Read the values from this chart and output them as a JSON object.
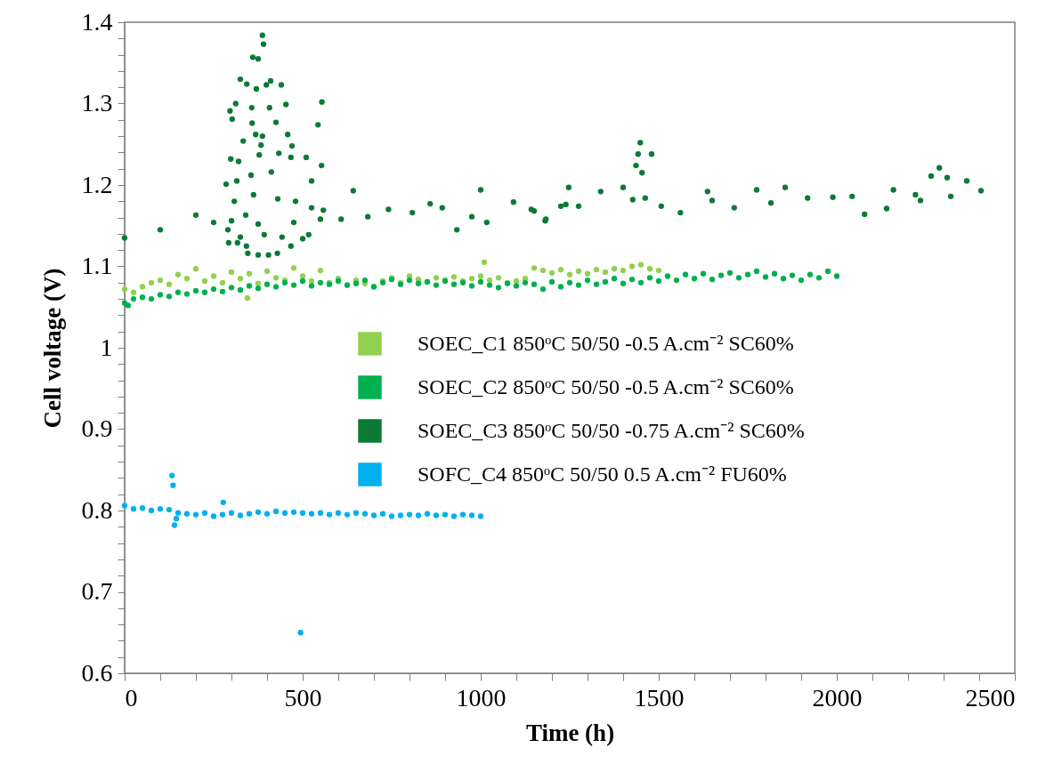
{
  "chart_data": {
    "type": "scatter",
    "xlabel": "Time (h)",
    "ylabel": "Cell voltage (V)",
    "marker": "circle",
    "legend": "right",
    "grid": false,
    "xlim": [
      0,
      2500
    ],
    "ylim": [
      0.6,
      1.4
    ],
    "xticks": [
      0,
      {
        "value": 100,
        "label": null
      },
      {
        "value": 200,
        "label": null
      },
      {
        "value": 300,
        "label": null
      },
      {
        "value": 400,
        "label": null
      },
      500,
      {
        "value": 600,
        "label": null
      },
      {
        "value": 700,
        "label": null
      },
      {
        "value": 800,
        "label": null
      },
      {
        "value": 900,
        "label": null
      },
      1000,
      {
        "value": 1100,
        "label": null
      },
      {
        "value": 1200,
        "label": null
      },
      {
        "value": 1300,
        "label": null
      },
      {
        "value": 1400,
        "label": null
      },
      1500,
      {
        "value": 1600,
        "label": null
      },
      {
        "value": 1700,
        "label": null
      },
      {
        "value": 1800,
        "label": null
      },
      {
        "value": 1900,
        "label": null
      },
      2000,
      {
        "value": 2100,
        "label": null
      },
      {
        "value": 2200,
        "label": null
      },
      {
        "value": 2300,
        "label": null
      },
      {
        "value": 2400,
        "label": null
      },
      2500
    ],
    "yticks": [
      0.6,
      {
        "value": 0.62,
        "label": null
      },
      {
        "value": 0.64,
        "label": null
      },
      {
        "value": 0.66,
        "label": null
      },
      {
        "value": 0.68,
        "label": null
      },
      0.7,
      {
        "value": 0.72,
        "label": null
      },
      {
        "value": 0.74,
        "label": null
      },
      {
        "value": 0.76,
        "label": null
      },
      {
        "value": 0.78,
        "label": null
      },
      0.8,
      {
        "value": 0.82,
        "label": null
      },
      {
        "value": 0.84,
        "label": null
      },
      {
        "value": 0.86,
        "label": null
      },
      {
        "value": 0.88,
        "label": null
      },
      0.9,
      {
        "value": 0.92,
        "label": null
      },
      {
        "value": 0.94,
        "label": null
      },
      {
        "value": 0.96,
        "label": null
      },
      {
        "value": 0.98,
        "label": null
      },
      1,
      {
        "value": 1.02,
        "label": null
      },
      {
        "value": 1.04,
        "label": null
      },
      {
        "value": 1.06,
        "label": null
      },
      {
        "value": 1.08,
        "label": null
      },
      1.1,
      {
        "value": 1.12,
        "label": null
      },
      {
        "value": 1.14,
        "label": null
      },
      {
        "value": 1.16,
        "label": null
      },
      {
        "value": 1.18,
        "label": null
      },
      1.2,
      {
        "value": 1.22,
        "label": null
      },
      {
        "value": 1.24,
        "label": null
      },
      {
        "value": 1.26,
        "label": null
      },
      {
        "value": 1.28,
        "label": null
      },
      1.3,
      {
        "value": 1.32,
        "label": null
      },
      {
        "value": 1.34,
        "label": null
      },
      {
        "value": 1.36,
        "label": null
      },
      {
        "value": 1.38,
        "label": null
      },
      1.4
    ],
    "series": [
      {
        "name": "SOEC_C1 850ᵒC 50/50 -0.5 A.cm⁻² SC60%",
        "color": "#92d050",
        "x": [
          0,
          25,
          50,
          75,
          100,
          125,
          150,
          175,
          200,
          225,
          250,
          275,
          300,
          325,
          345,
          350,
          375,
          400,
          425,
          450,
          475,
          500,
          525,
          550,
          575,
          600,
          625,
          650,
          675,
          700,
          725,
          750,
          775,
          800,
          825,
          850,
          875,
          900,
          925,
          950,
          975,
          1000,
          1010,
          1025,
          1050,
          1075,
          1100,
          1125,
          1150,
          1175,
          1200,
          1225,
          1250,
          1275,
          1300,
          1325,
          1350,
          1375,
          1400,
          1425,
          1450,
          1475,
          1500
        ],
        "values": [
          1.072,
          1.068,
          1.075,
          1.08,
          1.083,
          1.078,
          1.09,
          1.085,
          1.097,
          1.082,
          1.088,
          1.08,
          1.093,
          1.085,
          1.061,
          1.091,
          1.079,
          1.094,
          1.086,
          1.083,
          1.098,
          1.088,
          1.082,
          1.095,
          1.08,
          1.085,
          1.077,
          1.083,
          1.079,
          1.075,
          1.082,
          1.086,
          1.08,
          1.088,
          1.084,
          1.081,
          1.086,
          1.083,
          1.087,
          1.082,
          1.085,
          1.088,
          1.105,
          1.083,
          1.086,
          1.08,
          1.082,
          1.085,
          1.098,
          1.095,
          1.092,
          1.096,
          1.09,
          1.094,
          1.091,
          1.096,
          1.093,
          1.097,
          1.095,
          1.1,
          1.102,
          1.097,
          1.095
        ]
      },
      {
        "name": "SOEC_C2 850ᵒC 50/50 -0.5 A.cm⁻² SC60%",
        "color": "#00b050",
        "x": [
          0,
          10,
          25,
          50,
          75,
          100,
          125,
          150,
          175,
          200,
          225,
          250,
          275,
          300,
          325,
          350,
          375,
          400,
          425,
          450,
          475,
          500,
          525,
          550,
          575,
          600,
          625,
          650,
          675,
          700,
          725,
          750,
          775,
          800,
          825,
          850,
          875,
          900,
          925,
          950,
          975,
          1000,
          1025,
          1050,
          1075,
          1100,
          1125,
          1150,
          1175,
          1200,
          1225,
          1250,
          1275,
          1300,
          1325,
          1350,
          1375,
          1400,
          1425,
          1450,
          1475,
          1500,
          1525,
          1550,
          1575,
          1600,
          1625,
          1650,
          1675,
          1700,
          1725,
          1750,
          1775,
          1800,
          1825,
          1850,
          1875,
          1900,
          1925,
          1950,
          1975,
          2000
        ],
        "values": [
          1.055,
          1.052,
          1.06,
          1.062,
          1.06,
          1.065,
          1.063,
          1.068,
          1.066,
          1.07,
          1.068,
          1.072,
          1.069,
          1.074,
          1.071,
          1.076,
          1.073,
          1.078,
          1.075,
          1.08,
          1.077,
          1.082,
          1.076,
          1.08,
          1.078,
          1.082,
          1.077,
          1.079,
          1.083,
          1.075,
          1.08,
          1.084,
          1.078,
          1.083,
          1.079,
          1.081,
          1.077,
          1.082,
          1.078,
          1.08,
          1.076,
          1.081,
          1.077,
          1.074,
          1.079,
          1.076,
          1.08,
          1.078,
          1.072,
          1.081,
          1.075,
          1.08,
          1.077,
          1.083,
          1.078,
          1.081,
          1.085,
          1.079,
          1.084,
          1.08,
          1.086,
          1.082,
          1.088,
          1.083,
          1.09,
          1.085,
          1.091,
          1.084,
          1.089,
          1.092,
          1.086,
          1.09,
          1.094,
          1.087,
          1.091,
          1.085,
          1.089,
          1.083,
          1.09,
          1.086,
          1.094,
          1.088
        ]
      },
      {
        "name": "SOEC_C3 850ᵒC 50/50 -0.75 A.cm⁻² SC60%",
        "color": "#0b7a35",
        "x": [
          0,
          100,
          200,
          250,
          300,
          340,
          387,
          390,
          360,
          375,
          325,
          343,
          398,
          410,
          440,
          370,
          312,
          357,
          407,
          453,
          296,
          302,
          554,
          543,
          358,
          425,
          368,
          387,
          458,
          333,
          470,
          383,
          378,
          433,
          298,
          320,
          467,
          510,
          553,
          355,
          412,
          285,
          315,
          362,
          308,
          480,
          525,
          430,
          375,
          290,
          317,
          346,
          375,
          404,
          429,
          467,
          500,
          392,
          325,
          442,
          517,
          475,
          292,
          342,
          550,
          525,
          558,
          608,
          642,
          683,
          741,
          808,
          858,
          892,
          933,
          975,
          1000,
          1017,
          1092,
          1142,
          1150,
          1181,
          1183,
          1225,
          1239,
          1247,
          1275,
          1337,
          1400,
          1427,
          1436,
          1442,
          1448,
          1453,
          1462,
          1480,
          1507,
          1561,
          1637,
          1650,
          1712,
          1775,
          1815,
          1855,
          1918,
          1989,
          2043,
          2078,
          2140,
          2159,
          2221,
          2235,
          2265,
          2288,
          2310,
          2320,
          2365,
          2405
        ],
        "values": [
          1.135,
          1.145,
          1.163,
          1.154,
          1.156,
          1.163,
          1.384,
          1.373,
          1.357,
          1.355,
          1.33,
          1.324,
          1.323,
          1.328,
          1.323,
          1.318,
          1.3,
          1.295,
          1.295,
          1.299,
          1.291,
          1.281,
          1.302,
          1.274,
          1.276,
          1.277,
          1.262,
          1.26,
          1.262,
          1.254,
          1.248,
          1.249,
          1.237,
          1.239,
          1.232,
          1.229,
          1.234,
          1.234,
          1.224,
          1.212,
          1.216,
          1.201,
          1.205,
          1.188,
          1.18,
          1.18,
          1.205,
          1.183,
          1.152,
          1.145,
          1.129,
          1.116,
          1.114,
          1.114,
          1.116,
          1.125,
          1.134,
          1.139,
          1.136,
          1.136,
          1.139,
          1.154,
          1.129,
          1.125,
          1.158,
          1.172,
          1.169,
          1.158,
          1.193,
          1.161,
          1.17,
          1.166,
          1.177,
          1.172,
          1.145,
          1.161,
          1.194,
          1.154,
          1.179,
          1.17,
          1.168,
          1.156,
          1.158,
          1.174,
          1.176,
          1.197,
          1.174,
          1.192,
          1.197,
          1.182,
          1.224,
          1.238,
          1.252,
          1.215,
          1.184,
          1.238,
          1.174,
          1.166,
          1.192,
          1.181,
          1.172,
          1.194,
          1.178,
          1.197,
          1.184,
          1.185,
          1.186,
          1.164,
          1.171,
          1.194,
          1.188,
          1.181,
          1.211,
          1.221,
          1.209,
          1.186,
          1.205,
          1.193
        ]
      },
      {
        "name": "SOFC_C4 850ᵒC 50/50 0.5 A.cm⁻² FU60%",
        "color": "#00b0f0",
        "x": [
          0,
          25,
          50,
          75,
          100,
          125,
          133,
          136,
          140,
          145,
          150,
          175,
          200,
          225,
          250,
          275,
          277,
          300,
          325,
          350,
          375,
          400,
          425,
          450,
          475,
          494,
          500,
          525,
          550,
          575,
          600,
          625,
          650,
          675,
          700,
          725,
          750,
          775,
          800,
          825,
          850,
          875,
          900,
          925,
          950,
          975,
          1000
        ],
        "values": [
          0.806,
          0.802,
          0.803,
          0.8,
          0.802,
          0.801,
          0.843,
          0.831,
          0.782,
          0.79,
          0.797,
          0.796,
          0.795,
          0.797,
          0.793,
          0.795,
          0.81,
          0.797,
          0.794,
          0.796,
          0.798,
          0.796,
          0.799,
          0.797,
          0.798,
          0.65,
          0.797,
          0.796,
          0.797,
          0.795,
          0.797,
          0.795,
          0.797,
          0.796,
          0.794,
          0.796,
          0.793,
          0.794,
          0.795,
          0.794,
          0.796,
          0.794,
          0.795,
          0.793,
          0.795,
          0.794,
          0.793
        ]
      }
    ]
  }
}
